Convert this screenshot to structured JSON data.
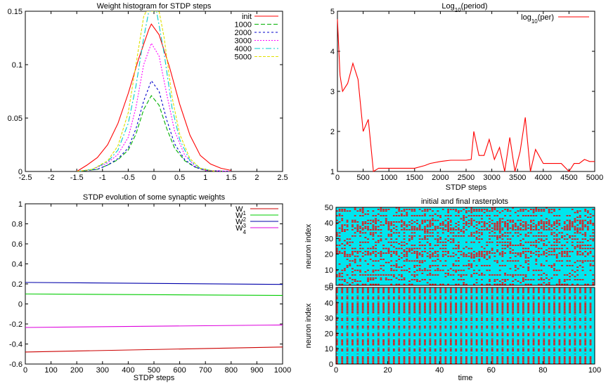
{
  "chart_data": [
    {
      "type": "line",
      "title": "Weight histogram for STDP steps",
      "xlabel": "",
      "ylabel": "",
      "xlim": [
        -2.5,
        2.5
      ],
      "ylim": [
        0,
        0.15
      ],
      "x_ticks": [
        "-2.5",
        "-2",
        "-1.5",
        "-1",
        "-0.5",
        "0",
        "0.5",
        "1",
        "1.5",
        "2",
        "2.5"
      ],
      "y_ticks": [
        "0",
        "0.05",
        "0.1",
        "0.15"
      ],
      "legend_position": "top-right",
      "series": [
        {
          "name": "init",
          "color": "#ff0000",
          "dash": "",
          "points": [
            [
              -1.5,
              0
            ],
            [
              -1.3,
              0.006
            ],
            [
              -1.1,
              0.013
            ],
            [
              -0.9,
              0.025
            ],
            [
              -0.7,
              0.045
            ],
            [
              -0.5,
              0.073
            ],
            [
              -0.3,
              0.105
            ],
            [
              -0.1,
              0.133
            ],
            [
              -0.05,
              0.138
            ],
            [
              0.1,
              0.128
            ],
            [
              0.3,
              0.098
            ],
            [
              0.5,
              0.063
            ],
            [
              0.7,
              0.034
            ],
            [
              0.9,
              0.015
            ],
            [
              1.1,
              0.007
            ],
            [
              1.3,
              0.003
            ],
            [
              1.5,
              0.001
            ]
          ]
        },
        {
          "name": "1000",
          "color": "#00b000",
          "dash": "6,3",
          "points": [
            [
              -1.5,
              0
            ],
            [
              -1.1,
              0.002
            ],
            [
              -0.9,
              0.006
            ],
            [
              -0.7,
              0.011
            ],
            [
              -0.5,
              0.02
            ],
            [
              -0.35,
              0.035
            ],
            [
              -0.2,
              0.058
            ],
            [
              -0.05,
              0.071
            ],
            [
              0.1,
              0.062
            ],
            [
              0.25,
              0.04
            ],
            [
              0.4,
              0.022
            ],
            [
              0.6,
              0.01
            ],
            [
              0.8,
              0.004
            ],
            [
              1.0,
              0.001
            ],
            [
              1.5,
              0
            ]
          ]
        },
        {
          "name": "2000",
          "color": "#0000cc",
          "dash": "3,3",
          "points": [
            [
              -1.5,
              0
            ],
            [
              -1.1,
              0.002
            ],
            [
              -0.9,
              0.006
            ],
            [
              -0.7,
              0.012
            ],
            [
              -0.5,
              0.022
            ],
            [
              -0.35,
              0.04
            ],
            [
              -0.2,
              0.066
            ],
            [
              -0.05,
              0.085
            ],
            [
              0.1,
              0.075
            ],
            [
              0.25,
              0.048
            ],
            [
              0.4,
              0.026
            ],
            [
              0.6,
              0.011
            ],
            [
              0.8,
              0.004
            ],
            [
              1.0,
              0.001
            ],
            [
              1.5,
              0
            ]
          ]
        },
        {
          "name": "3000",
          "color": "#ff00ff",
          "dash": "2,2",
          "points": [
            [
              -1.5,
              0
            ],
            [
              -1.2,
              0.002
            ],
            [
              -0.9,
              0.008
            ],
            [
              -0.7,
              0.016
            ],
            [
              -0.5,
              0.032
            ],
            [
              -0.35,
              0.06
            ],
            [
              -0.2,
              0.1
            ],
            [
              -0.05,
              0.12
            ],
            [
              0.1,
              0.108
            ],
            [
              0.25,
              0.072
            ],
            [
              0.4,
              0.038
            ],
            [
              0.6,
              0.015
            ],
            [
              0.8,
              0.005
            ],
            [
              1.0,
              0.001
            ],
            [
              1.5,
              0
            ]
          ]
        },
        {
          "name": "4000",
          "color": "#00cccc",
          "dash": "8,3,2,3",
          "points": [
            [
              -1.5,
              0
            ],
            [
              -1.2,
              0.002
            ],
            [
              -0.9,
              0.009
            ],
            [
              -0.7,
              0.02
            ],
            [
              -0.5,
              0.045
            ],
            [
              -0.35,
              0.08
            ],
            [
              -0.2,
              0.125
            ],
            [
              -0.1,
              0.15
            ],
            [
              0.05,
              0.15
            ],
            [
              0.2,
              0.11
            ],
            [
              0.35,
              0.06
            ],
            [
              0.5,
              0.03
            ],
            [
              0.7,
              0.01
            ],
            [
              0.9,
              0.003
            ],
            [
              1.2,
              0
            ]
          ]
        },
        {
          "name": "5000",
          "color": "#e0e000",
          "dash": "4,2",
          "points": [
            [
              -1.5,
              0
            ],
            [
              -1.2,
              0.002
            ],
            [
              -0.9,
              0.01
            ],
            [
              -0.7,
              0.024
            ],
            [
              -0.5,
              0.055
            ],
            [
              -0.35,
              0.1
            ],
            [
              -0.2,
              0.145
            ],
            [
              -0.15,
              0.15
            ],
            [
              0.1,
              0.15
            ],
            [
              0.2,
              0.125
            ],
            [
              0.35,
              0.07
            ],
            [
              0.5,
              0.035
            ],
            [
              0.7,
              0.012
            ],
            [
              0.9,
              0.003
            ],
            [
              1.2,
              0
            ]
          ]
        }
      ]
    },
    {
      "type": "line",
      "title": "Log",
      "title_sub": "10",
      "title_tail": "(period)",
      "xlabel": "STDP steps",
      "ylabel": "",
      "xlim": [
        0,
        5000
      ],
      "ylim": [
        1,
        5
      ],
      "x_ticks": [
        "0",
        "500",
        "1000",
        "1500",
        "2000",
        "2500",
        "3000",
        "3500",
        "4000",
        "4500",
        "5000"
      ],
      "y_ticks": [
        "1",
        "2",
        "3",
        "4",
        "5"
      ],
      "legend_position": "top-right",
      "legend_main": "log",
      "legend_sub": "10",
      "legend_tail": "(per)",
      "series": [
        {
          "name": "log10(per)",
          "color": "#ff0000",
          "x": [
            0,
            50,
            100,
            200,
            300,
            400,
            500,
            600,
            700,
            800,
            1000,
            1200,
            1500,
            1700,
            1800,
            2000,
            2200,
            2500,
            2600,
            2650,
            2750,
            2850,
            2950,
            3050,
            3150,
            3250,
            3350,
            3450,
            3550,
            3650,
            3750,
            3850,
            4000,
            4100,
            4200,
            4350,
            4500,
            4600,
            4700,
            4800,
            4900,
            5000
          ],
          "y": [
            4.8,
            3.4,
            3.0,
            3.2,
            3.7,
            3.3,
            2.0,
            2.3,
            1.0,
            1.08,
            1.08,
            1.08,
            1.08,
            1.15,
            1.2,
            1.25,
            1.28,
            1.28,
            1.3,
            2.0,
            1.4,
            1.4,
            1.8,
            1.3,
            1.6,
            1.0,
            1.85,
            1.0,
            1.5,
            2.35,
            1.0,
            1.55,
            1.2,
            1.2,
            1.2,
            1.2,
            1.0,
            1.2,
            1.2,
            1.3,
            1.25,
            1.25
          ]
        }
      ]
    },
    {
      "type": "line",
      "title": "STDP evolution of some synaptic weights",
      "xlabel": "STDP steps",
      "ylabel": "",
      "xlim": [
        0,
        1000
      ],
      "ylim": [
        -0.6,
        1
      ],
      "x_ticks": [
        "0",
        "100",
        "200",
        "300",
        "400",
        "500",
        "600",
        "700",
        "800",
        "900",
        "1000"
      ],
      "y_ticks": [
        "-0.6",
        "-0.4",
        "-0.2",
        "0",
        "0.2",
        "0.4",
        "0.6",
        "0.8",
        "1"
      ],
      "legend_position": "top-right",
      "series": [
        {
          "name": "W",
          "sub": "1",
          "color": "#cc0000",
          "x": [
            0,
            1000
          ],
          "y": [
            -0.48,
            -0.43
          ]
        },
        {
          "name": "W",
          "sub": "2",
          "color": "#00cc00",
          "x": [
            0,
            1000
          ],
          "y": [
            0.1,
            0.085
          ]
        },
        {
          "name": "W",
          "sub": "3",
          "color": "#0000aa",
          "x": [
            0,
            1000
          ],
          "y": [
            0.215,
            0.195
          ]
        },
        {
          "name": "W",
          "sub": "4",
          "color": "#dd00dd",
          "x": [
            0,
            1000
          ],
          "y": [
            -0.235,
            -0.21
          ]
        }
      ]
    },
    {
      "type": "scatter",
      "title": "initial and final rasterplots",
      "xlabel": "time",
      "ylabel": "neuron index",
      "xlim": [
        0,
        100
      ],
      "ylim": [
        0,
        50
      ],
      "x_ticks": [
        "0",
        "20",
        "40",
        "60",
        "80",
        "100"
      ],
      "y_ticks": [
        "0",
        "10",
        "20",
        "30",
        "40",
        "50"
      ],
      "background_color": "#00e5ee",
      "spike_color": "#ff0000",
      "panels": [
        {
          "name": "initial",
          "active_rows": [
            0,
            3,
            6,
            9,
            12,
            15,
            18,
            19,
            20,
            21,
            23,
            25,
            27,
            29,
            31,
            33,
            35,
            36,
            37,
            38,
            39,
            40,
            41,
            44,
            47,
            48
          ]
        },
        {
          "name": "final",
          "active_rows": [
            0,
            1,
            2,
            3,
            4,
            8,
            9,
            12,
            13,
            14,
            15,
            18,
            19,
            23,
            24,
            28,
            29,
            33,
            34,
            35,
            36,
            37,
            38,
            39,
            42,
            43,
            46,
            47,
            48,
            49
          ]
        }
      ]
    }
  ]
}
